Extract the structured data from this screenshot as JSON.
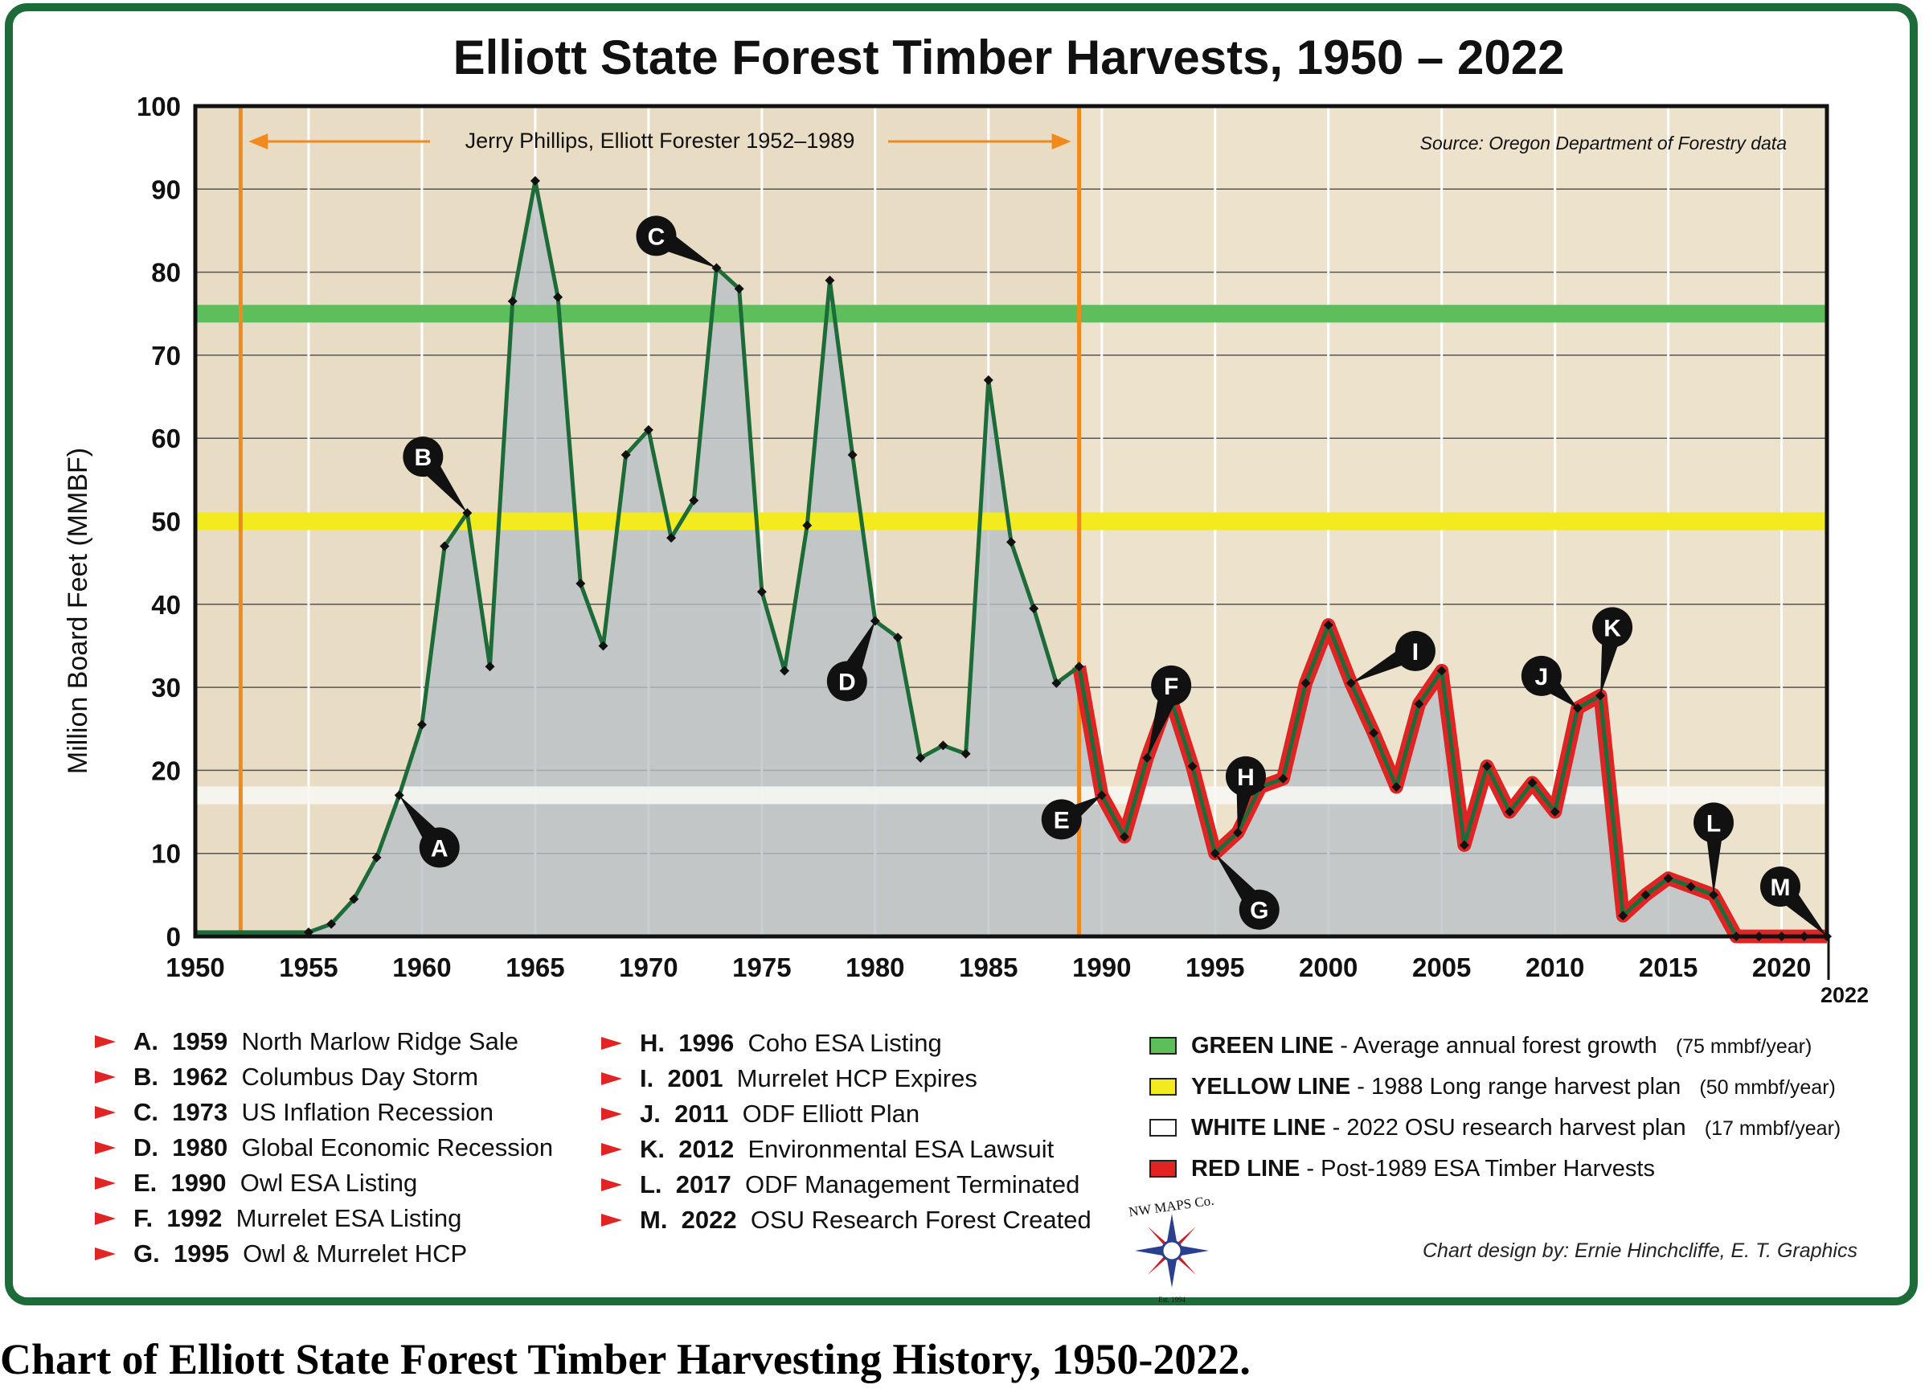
{
  "chart_data": {
    "type": "line",
    "title": "Elliott State Forest Timber Harvests, 1950 – 2022",
    "ylabel": "Million Board Feet (MMBF)",
    "xlabel": "",
    "xlim": [
      1950,
      2022
    ],
    "ylim": [
      0,
      100
    ],
    "x_ticks": [
      1950,
      1955,
      1960,
      1965,
      1970,
      1975,
      1980,
      1985,
      1990,
      1995,
      2000,
      2005,
      2010,
      2015,
      2020
    ],
    "x_end_tick": "2022",
    "y_ticks": [
      0,
      10,
      20,
      30,
      40,
      50,
      60,
      70,
      80,
      90,
      100
    ],
    "grid": true,
    "source": "Source: Oregon Department of  Forestry data",
    "series": [
      {
        "x": [
          1950,
          1951,
          1952,
          1953,
          1954,
          1955,
          1956,
          1957,
          1958,
          1959,
          1960,
          1961,
          1962,
          1963,
          1964,
          1965,
          1966,
          1967,
          1968,
          1969,
          1970,
          1971,
          1972,
          1973,
          1974,
          1975,
          1976,
          1977,
          1978,
          1979,
          1980,
          1981,
          1982,
          1983,
          1984,
          1985,
          1986,
          1987,
          1988,
          1989,
          1990,
          1991,
          1992,
          1993,
          1994,
          1995,
          1996,
          1997,
          1998,
          1999,
          2000,
          2001,
          2002,
          2003,
          2004,
          2005,
          2006,
          2007,
          2008,
          2009,
          2010,
          2011,
          2012,
          2013,
          2014,
          2015,
          2016,
          2017,
          2018,
          2019,
          2020,
          2021,
          2022
        ],
        "values": [
          0.5,
          0.5,
          0.5,
          0.5,
          0.5,
          0.5,
          1.5,
          4.5,
          9.5,
          17,
          25.5,
          47,
          51,
          32.5,
          76.5,
          91,
          77,
          42.5,
          35,
          58,
          61,
          48,
          52.5,
          80.5,
          78,
          41.5,
          32,
          49.5,
          79,
          58,
          38,
          36,
          21.5,
          23,
          22,
          67,
          47.5,
          39.5,
          30.5,
          32.5,
          17,
          12,
          21.5,
          29,
          20.5,
          10,
          12.5,
          18,
          19,
          30.5,
          37.5,
          30.5,
          24.5,
          18,
          28,
          32,
          11,
          20.5,
          15,
          18.5,
          15,
          27.5,
          29,
          2.5,
          5,
          7,
          6,
          5,
          0,
          0,
          0,
          0,
          0
        ],
        "color": "#1e6b3a"
      }
    ],
    "red_segment_from": 1989,
    "reference_lines": [
      {
        "value": 75,
        "color": "#5cbf5c"
      },
      {
        "value": 50,
        "color": "#f3ea1f"
      },
      {
        "value": 17,
        "color": "#f7f7f2"
      }
    ],
    "vertical_markers": [
      1952,
      1989
    ],
    "span_label": "Jerry Phillips, Elliott Forester 1952–1989",
    "markers": [
      {
        "letter": "A",
        "year": 1959
      },
      {
        "letter": "B",
        "year": 1962
      },
      {
        "letter": "C",
        "year": 1973
      },
      {
        "letter": "D",
        "year": 1980
      },
      {
        "letter": "E",
        "year": 1990
      },
      {
        "letter": "F",
        "year": 1992
      },
      {
        "letter": "G",
        "year": 1995
      },
      {
        "letter": "H",
        "year": 1996
      },
      {
        "letter": "I",
        "year": 2001
      },
      {
        "letter": "J",
        "year": 2011
      },
      {
        "letter": "K",
        "year": 2012
      },
      {
        "letter": "L",
        "year": 2017
      },
      {
        "letter": "M",
        "year": 2022
      }
    ]
  },
  "events_left": [
    {
      "letter": "A.",
      "year": "1959",
      "text": "North Marlow Ridge Sale"
    },
    {
      "letter": "B.",
      "year": "1962",
      "text": "Columbus Day Storm"
    },
    {
      "letter": "C.",
      "year": "1973",
      "text": "US Inflation Recession"
    },
    {
      "letter": "D.",
      "year": "1980",
      "text": "Global Economic Recession"
    },
    {
      "letter": "E.",
      "year": "1990",
      "text": "Owl ESA Listing"
    },
    {
      "letter": "F.",
      "year": "1992",
      "text": "Murrelet ESA Listing"
    },
    {
      "letter": "G.",
      "year": "1995",
      "text": "Owl & Murrelet HCP"
    }
  ],
  "events_right": [
    {
      "letter": "H.",
      "year": "1996",
      "text": "Coho ESA Listing"
    },
    {
      "letter": "I.",
      "year": "2001",
      "text": "Murrelet HCP Expires"
    },
    {
      "letter": "J.",
      "year": "2011",
      "text": "ODF Elliott Plan"
    },
    {
      "letter": "K.",
      "year": "2012",
      "text": "Environmental ESA Lawsuit"
    },
    {
      "letter": "L.",
      "year": "2017",
      "text": "ODF Management Terminated"
    },
    {
      "letter": "M.",
      "year": "2022",
      "text": "OSU Research Forest Created"
    }
  ],
  "legend": [
    {
      "name": "GREEN LINE",
      "desc": "- Average annual forest growth",
      "extra": "(75 mmbf/year)",
      "color": "#5cbf5c"
    },
    {
      "name": "YELLOW LINE",
      "desc": "- 1988 Long range harvest plan",
      "extra": "(50 mmbf/year)",
      "color": "#f3ea1f"
    },
    {
      "name": "WHITE LINE",
      "desc": "- 2022 OSU research harvest plan",
      "extra": "(17 mmbf/year)",
      "color": "#ffffff"
    },
    {
      "name": "RED LINE",
      "desc": "- Post-1989 ESA Timber Harvests",
      "extra": "",
      "color": "#e02424"
    }
  ],
  "credit": "Chart design by: Ernie Hinchcliffe, E. T. Graphics",
  "logo": {
    "text_top": "NW MAPS Co.",
    "text_bottom": "Est. 1994"
  },
  "caption": "Chart of Elliott State Forest Timber Harvesting History, 1950-2022."
}
